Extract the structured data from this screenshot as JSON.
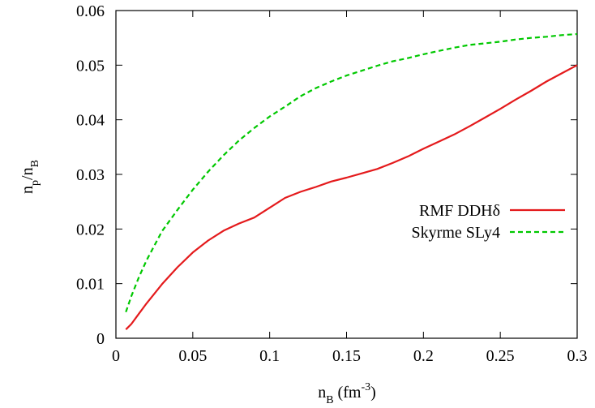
{
  "chart_data": {
    "type": "line",
    "xlabel_main": "n",
    "xlabel_sub": "B",
    "xlabel_unit_open": " (fm",
    "xlabel_unit_exp": "-3",
    "xlabel_unit_close": ")",
    "ylabel_main1": "n",
    "ylabel_sub1": "p",
    "ylabel_slash": "/n",
    "ylabel_sub2": "B",
    "xlim": [
      0,
      0.3
    ],
    "ylim": [
      0,
      0.06
    ],
    "x_ticks": [
      "0",
      "0.05",
      "0.1",
      "0.15",
      "0.2",
      "0.25",
      "0.3"
    ],
    "x_tick_values": [
      0,
      0.05,
      0.1,
      0.15,
      0.2,
      0.25,
      0.3
    ],
    "y_ticks": [
      "0",
      "0.01",
      "0.02",
      "0.03",
      "0.04",
      "0.05",
      "0.06"
    ],
    "y_tick_values": [
      0,
      0.01,
      0.02,
      0.03,
      0.04,
      0.05,
      0.06
    ],
    "grid": false,
    "legend_position": "right",
    "series": [
      {
        "name": "RMF DDHδ",
        "color": "#e41a1c",
        "dash": "solid",
        "x": [
          0.0065,
          0.01,
          0.015,
          0.02,
          0.03,
          0.04,
          0.05,
          0.06,
          0.07,
          0.08,
          0.09,
          0.1,
          0.11,
          0.12,
          0.13,
          0.14,
          0.15,
          0.16,
          0.17,
          0.18,
          0.19,
          0.2,
          0.21,
          0.22,
          0.23,
          0.24,
          0.25,
          0.26,
          0.27,
          0.28,
          0.29,
          0.3
        ],
        "values": [
          0.0016,
          0.0026,
          0.0045,
          0.0064,
          0.0099,
          0.013,
          0.0157,
          0.0179,
          0.0197,
          0.021,
          0.0221,
          0.0239,
          0.0257,
          0.0268,
          0.0277,
          0.0287,
          0.0294,
          0.0302,
          0.031,
          0.0321,
          0.0333,
          0.0347,
          0.036,
          0.0373,
          0.0388,
          0.0404,
          0.042,
          0.0437,
          0.0453,
          0.047,
          0.0485,
          0.05
        ]
      },
      {
        "name": "Skyrme SLy4",
        "color": "#00c800",
        "dash": "dashed",
        "x": [
          0.0065,
          0.01,
          0.015,
          0.02,
          0.03,
          0.04,
          0.05,
          0.06,
          0.07,
          0.08,
          0.09,
          0.1,
          0.11,
          0.12,
          0.13,
          0.14,
          0.15,
          0.16,
          0.17,
          0.18,
          0.19,
          0.2,
          0.21,
          0.22,
          0.23,
          0.24,
          0.25,
          0.26,
          0.27,
          0.28,
          0.29,
          0.3
        ],
        "values": [
          0.0048,
          0.0077,
          0.0112,
          0.0143,
          0.0196,
          0.0235,
          0.0272,
          0.0305,
          0.0335,
          0.0362,
          0.0385,
          0.0406,
          0.0424,
          0.0443,
          0.0458,
          0.047,
          0.0481,
          0.049,
          0.0499,
          0.0507,
          0.0513,
          0.052,
          0.0526,
          0.0532,
          0.0537,
          0.054,
          0.0543,
          0.0547,
          0.055,
          0.0552,
          0.0555,
          0.0557
        ]
      }
    ]
  }
}
